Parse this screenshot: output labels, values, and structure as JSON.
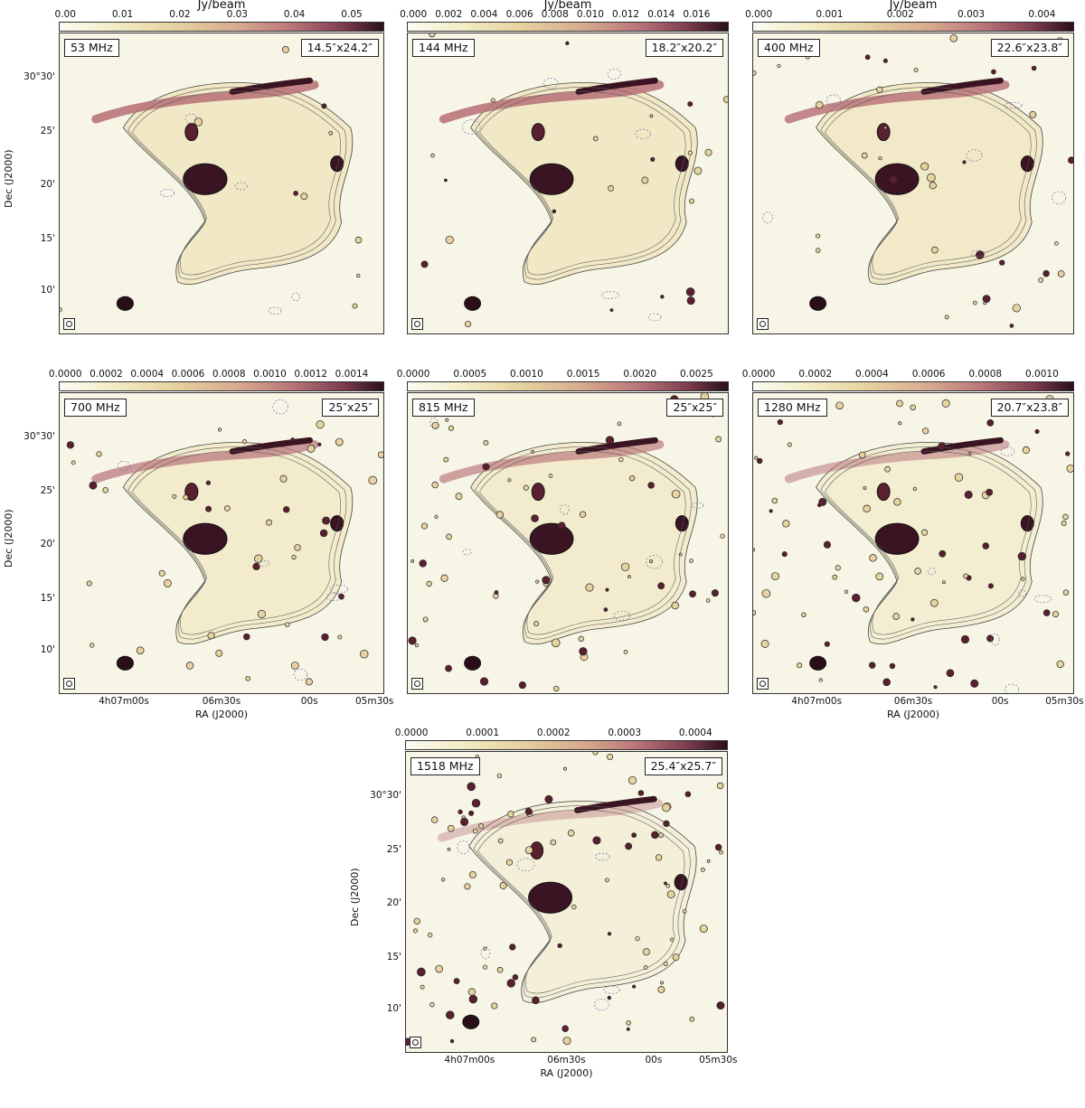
{
  "colorbar_unit": "Jy/beam",
  "axes": {
    "dec_label": "Dec (J2000)",
    "ra_label": "RA (J2000)",
    "dec_ticks": [
      "30°30'",
      "25'",
      "20'",
      "15'",
      "10'"
    ],
    "ra_ticks": [
      "4h07m00s",
      "06m30s",
      "00s",
      "05m30s"
    ]
  },
  "panels": [
    {
      "freq": "53 MHz",
      "beam": "14.5″x24.2″",
      "cbar_ticks": [
        "0.00",
        "0.01",
        "0.02",
        "0.03",
        "0.04",
        "0.05"
      ]
    },
    {
      "freq": "144 MHz",
      "beam": "18.2″x20.2″",
      "cbar_ticks": [
        "0.000",
        "0.002",
        "0.004",
        "0.006",
        "0.008",
        "0.010",
        "0.012",
        "0.014",
        "0.016"
      ]
    },
    {
      "freq": "400 MHz",
      "beam": "22.6″x23.8″",
      "cbar_ticks": [
        "0.000",
        "0.001",
        "0.002",
        "0.003",
        "0.004"
      ]
    },
    {
      "freq": "700 MHz",
      "beam": "25″x25″",
      "cbar_ticks": [
        "0.0000",
        "0.0002",
        "0.0004",
        "0.0006",
        "0.0008",
        "0.0010",
        "0.0012",
        "0.0014"
      ]
    },
    {
      "freq": "815 MHz",
      "beam": "25″x25″",
      "cbar_ticks": [
        "0.0000",
        "0.0005",
        "0.0010",
        "0.0015",
        "0.0020",
        "0.0025"
      ]
    },
    {
      "freq": "1280 MHz",
      "beam": "20.7″x23.8″",
      "cbar_ticks": [
        "0.0000",
        "0.0002",
        "0.0004",
        "0.0006",
        "0.0008",
        "0.0010"
      ]
    },
    {
      "freq": "1518 MHz",
      "beam": "25.4″x25.7″",
      "cbar_ticks": [
        "0.0000",
        "0.0001",
        "0.0002",
        "0.0003",
        "0.0004"
      ]
    }
  ],
  "colors": {
    "low": "#fbfbf4",
    "mid": "#d7aa8e",
    "high": "#2a0f19",
    "contour": "#222222",
    "neg_contour": "#6b6fa8"
  }
}
